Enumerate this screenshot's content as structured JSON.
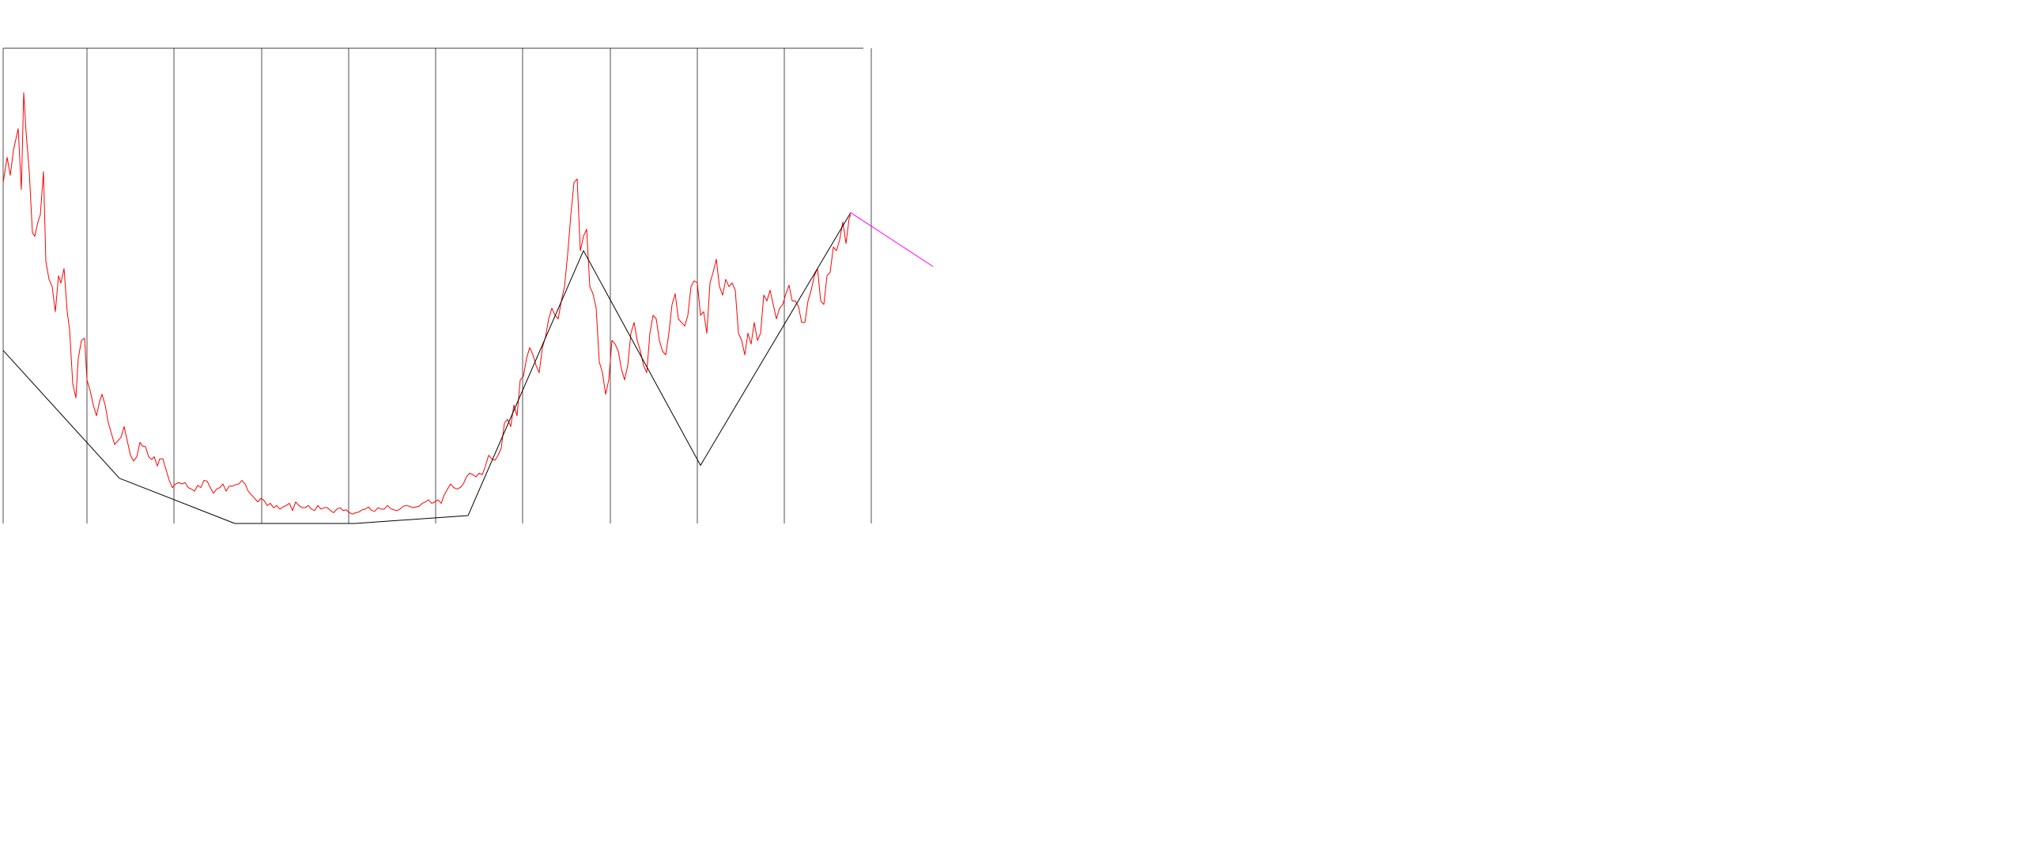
{
  "chart_data": {
    "type": "line",
    "title": "",
    "xlabel": "",
    "ylabel": "",
    "grid": true,
    "legend": "none",
    "xlim": [
      0,
      1180
    ],
    "ylim": [
      0,
      662
    ],
    "vertical_gridlines_x": [
      4,
      110,
      220,
      331,
      441,
      551,
      661,
      772,
      882,
      992,
      1102
    ],
    "colors": {
      "price": "#ff0000",
      "zigzag": "#000000",
      "projection": "#ff00ff",
      "grid": "#000000",
      "background": "#ffffff"
    },
    "series": [
      {
        "id": "price",
        "points": [
          [
            4,
            475
          ],
          [
            9,
            510
          ],
          [
            13,
            485
          ],
          [
            17,
            520
          ],
          [
            21,
            540
          ],
          [
            23,
            550
          ],
          [
            27,
            465
          ],
          [
            30,
            600
          ],
          [
            33,
            545
          ],
          [
            37,
            490
          ],
          [
            41,
            405
          ],
          [
            44,
            400
          ],
          [
            48,
            420
          ],
          [
            51,
            430
          ],
          [
            55,
            490
          ],
          [
            58,
            365
          ],
          [
            62,
            340
          ],
          [
            66,
            330
          ],
          [
            70,
            295
          ],
          [
            74,
            345
          ],
          [
            77,
            335
          ],
          [
            81,
            355
          ],
          [
            85,
            295
          ],
          [
            88,
            270
          ],
          [
            92,
            195
          ],
          [
            96,
            175
          ],
          [
            99,
            230
          ],
          [
            103,
            255
          ],
          [
            107,
            258
          ],
          [
            110,
            200
          ],
          [
            114,
            185
          ],
          [
            118,
            165
          ],
          [
            122,
            150
          ],
          [
            126,
            170
          ],
          [
            129,
            180
          ],
          [
            133,
            165
          ],
          [
            137,
            140
          ],
          [
            141,
            125
          ],
          [
            145,
            110
          ],
          [
            149,
            115
          ],
          [
            153,
            120
          ],
          [
            157,
            135
          ],
          [
            161,
            115
          ],
          [
            165,
            95
          ],
          [
            169,
            87
          ],
          [
            173,
            93
          ],
          [
            177,
            113
          ],
          [
            180,
            108
          ],
          [
            184,
            107
          ],
          [
            188,
            93
          ],
          [
            192,
            89
          ],
          [
            195,
            93
          ],
          [
            199,
            80
          ],
          [
            202,
            90
          ],
          [
            206,
            90
          ],
          [
            210,
            75
          ],
          [
            214,
            60
          ],
          [
            218,
            50
          ],
          [
            222,
            55
          ],
          [
            226,
            57
          ],
          [
            230,
            55
          ],
          [
            234,
            57
          ],
          [
            238,
            50
          ],
          [
            242,
            48
          ],
          [
            246,
            45
          ],
          [
            250,
            53
          ],
          [
            254,
            50
          ],
          [
            258,
            60
          ],
          [
            262,
            59
          ],
          [
            266,
            50
          ],
          [
            270,
            42
          ],
          [
            274,
            48
          ],
          [
            278,
            50
          ],
          [
            282,
            55
          ],
          [
            286,
            45
          ],
          [
            290,
            52
          ],
          [
            294,
            52
          ],
          [
            298,
            54
          ],
          [
            302,
            55
          ],
          [
            306,
            60
          ],
          [
            310,
            55
          ],
          [
            314,
            45
          ],
          [
            318,
            40
          ],
          [
            322,
            35
          ],
          [
            326,
            30
          ],
          [
            330,
            35
          ],
          [
            334,
            32
          ],
          [
            338,
            25
          ],
          [
            342,
            28
          ],
          [
            346,
            22
          ],
          [
            350,
            25
          ],
          [
            354,
            20
          ],
          [
            358,
            23
          ],
          [
            362,
            25
          ],
          [
            366,
            28
          ],
          [
            370,
            18
          ],
          [
            374,
            30
          ],
          [
            378,
            25
          ],
          [
            382,
            22
          ],
          [
            386,
            22
          ],
          [
            390,
            25
          ],
          [
            394,
            20
          ],
          [
            398,
            18
          ],
          [
            402,
            25
          ],
          [
            406,
            20
          ],
          [
            410,
            22
          ],
          [
            414,
            22
          ],
          [
            418,
            18
          ],
          [
            422,
            15
          ],
          [
            426,
            20
          ],
          [
            430,
            22
          ],
          [
            434,
            18
          ],
          [
            438,
            19
          ],
          [
            442,
            15
          ],
          [
            446,
            13
          ],
          [
            450,
            15
          ],
          [
            454,
            16
          ],
          [
            458,
            19
          ],
          [
            462,
            20
          ],
          [
            466,
            23
          ],
          [
            470,
            18
          ],
          [
            474,
            17
          ],
          [
            478,
            22
          ],
          [
            482,
            20
          ],
          [
            486,
            20
          ],
          [
            490,
            25
          ],
          [
            494,
            21
          ],
          [
            498,
            19
          ],
          [
            502,
            18
          ],
          [
            506,
            20
          ],
          [
            510,
            24
          ],
          [
            514,
            25
          ],
          [
            518,
            24
          ],
          [
            522,
            22
          ],
          [
            526,
            23
          ],
          [
            530,
            24
          ],
          [
            534,
            28
          ],
          [
            538,
            30
          ],
          [
            542,
            33
          ],
          [
            546,
            28
          ],
          [
            550,
            30
          ],
          [
            554,
            33
          ],
          [
            558,
            28
          ],
          [
            562,
            40
          ],
          [
            566,
            48
          ],
          [
            570,
            55
          ],
          [
            574,
            50
          ],
          [
            578,
            48
          ],
          [
            582,
            50
          ],
          [
            586,
            55
          ],
          [
            590,
            65
          ],
          [
            594,
            70
          ],
          [
            598,
            68
          ],
          [
            602,
            65
          ],
          [
            606,
            70
          ],
          [
            610,
            68
          ],
          [
            614,
            80
          ],
          [
            618,
            95
          ],
          [
            622,
            90
          ],
          [
            626,
            88
          ],
          [
            630,
            95
          ],
          [
            634,
            105
          ],
          [
            638,
            140
          ],
          [
            642,
            145
          ],
          [
            646,
            135
          ],
          [
            650,
            165
          ],
          [
            654,
            150
          ],
          [
            658,
            200
          ],
          [
            662,
            205
          ],
          [
            666,
            230
          ],
          [
            670,
            245
          ],
          [
            674,
            235
          ],
          [
            678,
            220
          ],
          [
            682,
            210
          ],
          [
            686,
            245
          ],
          [
            690,
            260
          ],
          [
            694,
            285
          ],
          [
            698,
            300
          ],
          [
            702,
            290
          ],
          [
            706,
            285
          ],
          [
            710,
            310
          ],
          [
            714,
            330
          ],
          [
            718,
            375
          ],
          [
            722,
            430
          ],
          [
            726,
            475
          ],
          [
            730,
            480
          ],
          [
            734,
            380
          ],
          [
            738,
            400
          ],
          [
            742,
            410
          ],
          [
            746,
            330
          ],
          [
            750,
            320
          ],
          [
            754,
            300
          ],
          [
            758,
            225
          ],
          [
            762,
            210
          ],
          [
            766,
            180
          ],
          [
            770,
            200
          ],
          [
            774,
            255
          ],
          [
            778,
            250
          ],
          [
            782,
            240
          ],
          [
            786,
            215
          ],
          [
            790,
            200
          ],
          [
            794,
            220
          ],
          [
            798,
            265
          ],
          [
            802,
            280
          ],
          [
            806,
            255
          ],
          [
            810,
            240
          ],
          [
            814,
            220
          ],
          [
            818,
            210
          ],
          [
            822,
            265
          ],
          [
            826,
            290
          ],
          [
            830,
            285
          ],
          [
            834,
            255
          ],
          [
            838,
            240
          ],
          [
            842,
            235
          ],
          [
            846,
            265
          ],
          [
            850,
            305
          ],
          [
            854,
            320
          ],
          [
            858,
            285
          ],
          [
            862,
            280
          ],
          [
            866,
            275
          ],
          [
            870,
            290
          ],
          [
            874,
            330
          ],
          [
            878,
            338
          ],
          [
            882,
            335
          ],
          [
            886,
            290
          ],
          [
            890,
            295
          ],
          [
            894,
            265
          ],
          [
            898,
            335
          ],
          [
            902,
            350
          ],
          [
            906,
            368
          ],
          [
            910,
            330
          ],
          [
            914,
            318
          ],
          [
            918,
            340
          ],
          [
            922,
            330
          ],
          [
            926,
            335
          ],
          [
            930,
            325
          ],
          [
            934,
            265
          ],
          [
            938,
            255
          ],
          [
            942,
            235
          ],
          [
            946,
            265
          ],
          [
            950,
            250
          ],
          [
            954,
            280
          ],
          [
            958,
            255
          ],
          [
            962,
            265
          ],
          [
            966,
            318
          ],
          [
            970,
            310
          ],
          [
            974,
            325
          ],
          [
            978,
            305
          ],
          [
            982,
            285
          ],
          [
            986,
            300
          ],
          [
            990,
            305
          ],
          [
            994,
            320
          ],
          [
            998,
            332
          ],
          [
            1002,
            310
          ],
          [
            1006,
            310
          ],
          [
            1010,
            302
          ],
          [
            1014,
            280
          ],
          [
            1018,
            280
          ],
          [
            1022,
            310
          ],
          [
            1026,
            325
          ],
          [
            1030,
            345
          ],
          [
            1034,
            355
          ],
          [
            1038,
            310
          ],
          [
            1042,
            305
          ],
          [
            1046,
            345
          ],
          [
            1050,
            350
          ],
          [
            1054,
            385
          ],
          [
            1058,
            380
          ],
          [
            1062,
            395
          ],
          [
            1066,
            420
          ],
          [
            1070,
            390
          ],
          [
            1074,
            425
          ],
          [
            1076,
            430
          ]
        ]
      },
      {
        "id": "zigzag",
        "points": [
          [
            4,
            241
          ],
          [
            151,
            63
          ],
          [
            297,
            0
          ],
          [
            449,
            0
          ],
          [
            592,
            11
          ],
          [
            738,
            380
          ],
          [
            886,
            81
          ],
          [
            1076,
            433
          ]
        ]
      },
      {
        "id": "projection",
        "points": [
          [
            1076,
            433
          ],
          [
            1180,
            358
          ]
        ]
      }
    ]
  }
}
